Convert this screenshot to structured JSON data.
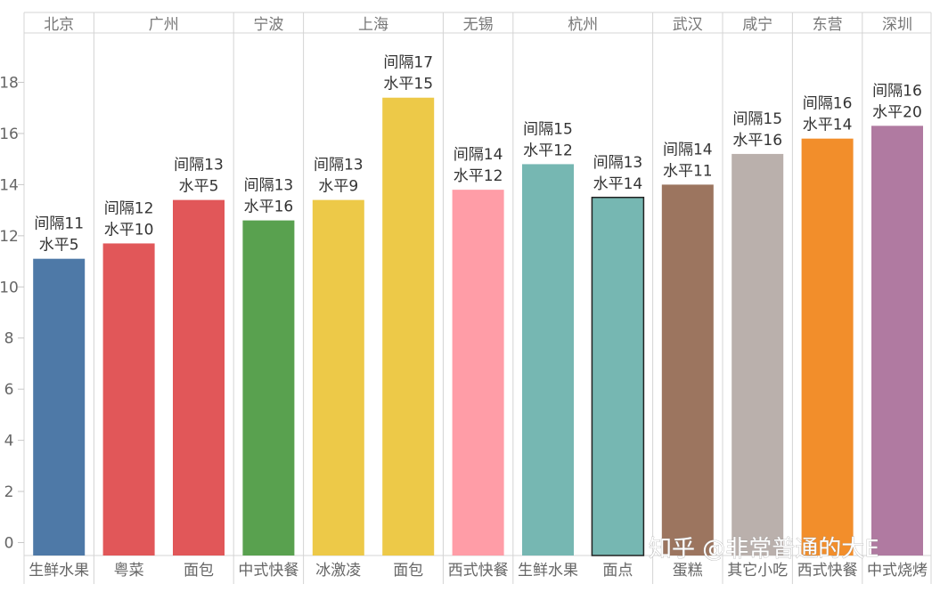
{
  "chart_data": {
    "type": "bar",
    "ylim": [
      -0.4,
      19.1
    ],
    "yticks": [
      0,
      2,
      4,
      6,
      8,
      10,
      12,
      14,
      16,
      18
    ],
    "grid": false,
    "groups": [
      {
        "name": "北京",
        "bars": [
          {
            "category": "生鲜水果",
            "value": 11.1,
            "color": "#4e79a7",
            "label_lines": [
              "间隔11",
              "水平5"
            ]
          }
        ]
      },
      {
        "name": "广州",
        "bars": [
          {
            "category": "粤菜",
            "value": 11.7,
            "color": "#e15759",
            "label_lines": [
              "间隔12",
              "水平10"
            ]
          },
          {
            "category": "面包",
            "value": 13.4,
            "color": "#e15759",
            "label_lines": [
              "间隔13",
              "水平5"
            ]
          }
        ]
      },
      {
        "name": "宁波",
        "bars": [
          {
            "category": "中式快餐",
            "value": 12.6,
            "color": "#59a14f",
            "label_lines": [
              "间隔13",
              "水平16"
            ]
          }
        ]
      },
      {
        "name": "上海",
        "bars": [
          {
            "category": "冰激凌",
            "value": 13.4,
            "color": "#edc948",
            "label_lines": [
              "间隔13",
              "水平9"
            ]
          },
          {
            "category": "面包",
            "value": 17.4,
            "color": "#edc948",
            "label_lines": [
              "间隔17",
              "水平15"
            ]
          }
        ]
      },
      {
        "name": "无锡",
        "bars": [
          {
            "category": "西式快餐",
            "value": 13.8,
            "color": "#ff9da7",
            "label_lines": [
              "间隔14",
              "水平12"
            ]
          }
        ]
      },
      {
        "name": "杭州",
        "bars": [
          {
            "category": "生鲜水果",
            "value": 14.8,
            "color": "#76b7b2",
            "label_lines": [
              "间隔15",
              "水平12"
            ]
          },
          {
            "category": "面点",
            "value": 13.5,
            "color": "#76b7b2",
            "label_lines": [
              "间隔13",
              "水平14"
            ],
            "highlight": true
          }
        ]
      },
      {
        "name": "武汉",
        "bars": [
          {
            "category": "蛋糕",
            "value": 14.0,
            "color": "#9c755f",
            "label_lines": [
              "间隔14",
              "水平11"
            ]
          }
        ]
      },
      {
        "name": "咸宁",
        "bars": [
          {
            "category": "其它小吃",
            "value": 15.2,
            "color": "#bab0ac",
            "label_lines": [
              "间隔15",
              "水平16"
            ]
          }
        ]
      },
      {
        "name": "东营",
        "bars": [
          {
            "category": "西式快餐",
            "value": 15.8,
            "color": "#f28e2b",
            "label_lines": [
              "间隔16",
              "水平14"
            ]
          }
        ]
      },
      {
        "name": "深圳",
        "bars": [
          {
            "category": "中式烧烤",
            "value": 16.3,
            "color": "#b07aa1",
            "label_lines": [
              "间隔16",
              "水平20"
            ]
          }
        ]
      }
    ]
  },
  "watermark": "知乎 @非常普通的大E"
}
